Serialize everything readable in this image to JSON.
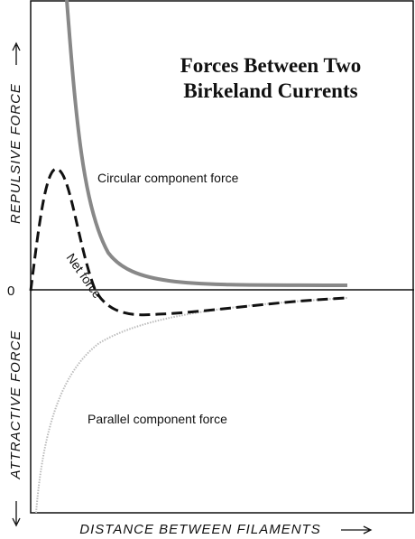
{
  "title": [
    "Forces Between Two",
    "Birkeland Currents"
  ],
  "y_axis": {
    "upper": "REPULSIVE FORCE",
    "lower": "ATTRACTIVE FORCE",
    "zero": "0"
  },
  "x_axis": {
    "label": "DISTANCE BETWEEN FILAMENTS"
  },
  "curves": {
    "circular": "Circular component force",
    "net": "Net force",
    "parallel": "Parallel component force"
  }
}
